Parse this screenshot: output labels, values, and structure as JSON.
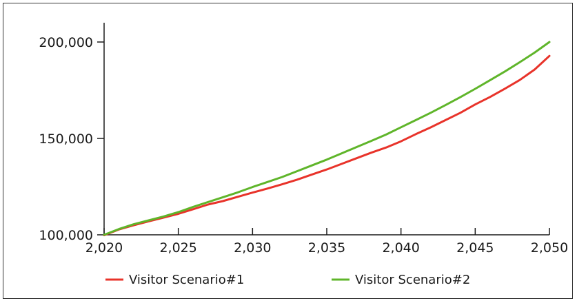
{
  "chart_data": {
    "type": "line",
    "title": "",
    "xlabel": "",
    "ylabel": "",
    "xlim": [
      2020,
      2050
    ],
    "ylim": [
      100000,
      210000
    ],
    "grid": false,
    "legend_position": "bottom",
    "x_ticks": [
      2020,
      2025,
      2030,
      2035,
      2040,
      2045,
      2050
    ],
    "x_tick_labels": [
      "2,020",
      "2,025",
      "2,030",
      "2,035",
      "2,040",
      "2,045",
      "2,050"
    ],
    "y_ticks": [
      100000,
      150000,
      200000
    ],
    "y_tick_labels": [
      "100,000",
      "150,000",
      "200,000"
    ],
    "x": [
      2020,
      2021,
      2022,
      2023,
      2024,
      2025,
      2026,
      2027,
      2028,
      2029,
      2030,
      2031,
      2032,
      2033,
      2034,
      2035,
      2036,
      2037,
      2038,
      2039,
      2040,
      2041,
      2042,
      2043,
      2044,
      2045,
      2046,
      2047,
      2048,
      2049,
      2050
    ],
    "series": [
      {
        "name": "Visitor Scenario#1",
        "color": "#e8332a",
        "values": [
          99800,
          102800,
          105000,
          107000,
          108900,
          110900,
          113300,
          115700,
          117500,
          119700,
          121900,
          124000,
          126200,
          128600,
          131300,
          133900,
          136800,
          139700,
          142600,
          145300,
          148500,
          152200,
          155700,
          159500,
          163300,
          167600,
          171500,
          175800,
          180300,
          185700,
          192800
        ]
      },
      {
        "name": "Visitor Scenario#2",
        "color": "#5fb52a",
        "values": [
          100000,
          103000,
          105500,
          107500,
          109500,
          111800,
          114500,
          117000,
          119500,
          122000,
          124800,
          127400,
          130000,
          133000,
          136000,
          139000,
          142200,
          145500,
          148700,
          152000,
          155800,
          159500,
          163300,
          167300,
          171400,
          175700,
          180200,
          184700,
          189500,
          194500,
          200000
        ]
      }
    ]
  }
}
